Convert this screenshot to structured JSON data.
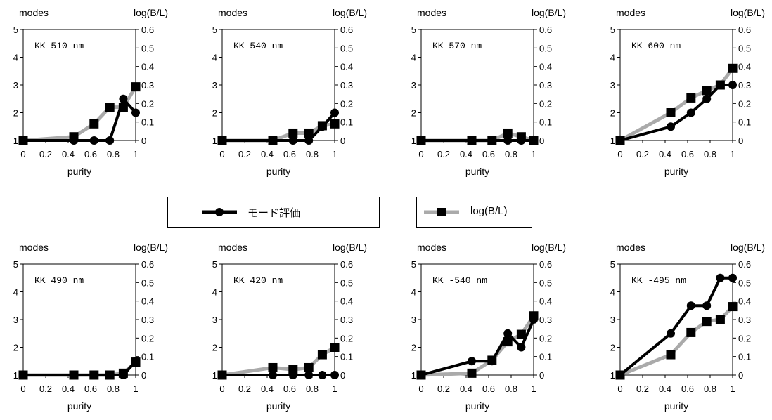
{
  "legend": {
    "mode": {
      "label": "モード評価",
      "color": "#000000",
      "marker": "circle"
    },
    "log": {
      "label": "log(B/L)",
      "color": "#aaaaaa",
      "marker": "square"
    }
  },
  "chart_data": [
    {
      "type": "line",
      "label": "KK 510 nm",
      "xlabel": "purity",
      "ylabel": "modes",
      "y2label": "log(B/L)",
      "xlim": [
        0,
        1
      ],
      "ylim": [
        1,
        5
      ],
      "y2lim": [
        0,
        0.6
      ],
      "xticks": [
        "0",
        "0.2",
        "0.4",
        "0.6",
        "0.8",
        "1"
      ],
      "yticks": [
        "1",
        "2",
        "3",
        "4",
        "5"
      ],
      "y2ticks": [
        "0",
        "0.1",
        "0.2",
        "0.3",
        "0.4",
        "0.5",
        "0.6"
      ],
      "series": [
        {
          "name": "モード評価",
          "axis": "left",
          "x": [
            0,
            0.45,
            0.63,
            0.77,
            0.89,
            1.0
          ],
          "y": [
            1,
            1,
            1,
            1,
            2.5,
            2.0
          ]
        },
        {
          "name": "log(B/L)",
          "axis": "right",
          "x": [
            0,
            0.45,
            0.63,
            0.77,
            0.89,
            1.0
          ],
          "y": [
            0,
            0.02,
            0.09,
            0.18,
            0.18,
            0.29
          ]
        }
      ]
    },
    {
      "type": "line",
      "label": "KK 540 nm",
      "xlabel": "purity",
      "ylabel": "modes",
      "y2label": "log(B/L)",
      "xlim": [
        0,
        1
      ],
      "ylim": [
        1,
        5
      ],
      "y2lim": [
        0,
        0.6
      ],
      "xticks": [
        "0",
        "0.2",
        "0.4",
        "0.6",
        "0.8",
        "1"
      ],
      "yticks": [
        "1",
        "2",
        "3",
        "4",
        "5"
      ],
      "y2ticks": [
        "0",
        "0.1",
        "0.2",
        "0.3",
        "0.4",
        "0.5",
        "0.6"
      ],
      "series": [
        {
          "name": "モード評価",
          "axis": "left",
          "x": [
            0,
            0.45,
            0.63,
            0.77,
            0.89,
            1.0
          ],
          "y": [
            1,
            1,
            1,
            1,
            1.5,
            2.0
          ]
        },
        {
          "name": "log(B/L)",
          "axis": "right",
          "x": [
            0,
            0.45,
            0.63,
            0.77,
            0.89,
            1.0
          ],
          "y": [
            0,
            0,
            0.04,
            0.04,
            0.08,
            0.09
          ]
        }
      ]
    },
    {
      "type": "line",
      "label": "KK 570 nm",
      "xlabel": "purity",
      "ylabel": "modes",
      "y2label": "log(B/L)",
      "xlim": [
        0,
        1
      ],
      "ylim": [
        1,
        5
      ],
      "y2lim": [
        0,
        0.6
      ],
      "xticks": [
        "0",
        "0.2",
        "0.4",
        "0.6",
        "0.8",
        "1"
      ],
      "yticks": [
        "1",
        "2",
        "3",
        "4",
        "5"
      ],
      "y2ticks": [
        "0",
        "0.1",
        "0.2",
        "0.3",
        "0.4",
        "0.5",
        "0.6"
      ],
      "series": [
        {
          "name": "モード評価",
          "axis": "left",
          "x": [
            0,
            0.45,
            0.63,
            0.77,
            0.89,
            1.0
          ],
          "y": [
            1,
            1,
            1,
            1,
            1,
            1
          ]
        },
        {
          "name": "log(B/L)",
          "axis": "right",
          "x": [
            0,
            0.45,
            0.63,
            0.77,
            0.89,
            1.0
          ],
          "y": [
            0,
            0,
            0,
            0.04,
            0.02,
            0
          ]
        }
      ]
    },
    {
      "type": "line",
      "label": "KK 600 nm",
      "xlabel": "purity",
      "ylabel": "modes",
      "y2label": "log(B/L)",
      "xlim": [
        0,
        1
      ],
      "ylim": [
        1,
        5
      ],
      "y2lim": [
        0,
        0.6
      ],
      "xticks": [
        "0",
        "0.2",
        "0.4",
        "0.6",
        "0.8",
        "1"
      ],
      "yticks": [
        "1",
        "2",
        "3",
        "4",
        "5"
      ],
      "y2ticks": [
        "0",
        "0.1",
        "0.2",
        "0.3",
        "0.4",
        "0.5",
        "0.6"
      ],
      "series": [
        {
          "name": "モード評価",
          "axis": "left",
          "x": [
            0,
            0.45,
            0.63,
            0.77,
            0.89,
            1.0
          ],
          "y": [
            1,
            1.5,
            2.0,
            2.5,
            3.0,
            3.0
          ]
        },
        {
          "name": "log(B/L)",
          "axis": "right",
          "x": [
            0,
            0.45,
            0.63,
            0.77,
            0.89,
            1.0
          ],
          "y": [
            0,
            0.15,
            0.23,
            0.27,
            0.3,
            0.39
          ]
        }
      ]
    },
    {
      "type": "line",
      "label": "KK 490 nm",
      "xlabel": "purity",
      "ylabel": "modes",
      "y2label": "log(B/L)",
      "xlim": [
        0,
        1
      ],
      "ylim": [
        1,
        5
      ],
      "y2lim": [
        0,
        0.6
      ],
      "xticks": [
        "0",
        "0.2",
        "0.4",
        "0.6",
        "0.8",
        "1"
      ],
      "yticks": [
        "1",
        "2",
        "3",
        "4",
        "5"
      ],
      "y2ticks": [
        "0",
        "0.1",
        "0.2",
        "0.3",
        "0.4",
        "0.5",
        "0.6"
      ],
      "series": [
        {
          "name": "モード評価",
          "axis": "left",
          "x": [
            0,
            0.45,
            0.63,
            0.77,
            0.89,
            1.0
          ],
          "y": [
            1,
            1,
            1,
            1,
            1,
            1.5
          ]
        },
        {
          "name": "log(B/L)",
          "axis": "right",
          "x": [
            0,
            0.45,
            0.63,
            0.77,
            0.89,
            1.0
          ],
          "y": [
            0,
            0,
            0,
            0,
            0.01,
            0.07
          ]
        }
      ]
    },
    {
      "type": "line",
      "label": "KK 420 nm",
      "xlabel": "purity",
      "ylabel": "modes",
      "y2label": "log(B/L)",
      "xlim": [
        0,
        1
      ],
      "ylim": [
        1,
        5
      ],
      "y2lim": [
        0,
        0.6
      ],
      "xticks": [
        "0",
        "0.2",
        "0.4",
        "0.6",
        "0.8",
        "1"
      ],
      "yticks": [
        "1",
        "2",
        "3",
        "4",
        "5"
      ],
      "y2ticks": [
        "0",
        "0.1",
        "0.2",
        "0.3",
        "0.4",
        "0.5",
        "0.6"
      ],
      "series": [
        {
          "name": "モード評価",
          "axis": "left",
          "x": [
            0,
            0.45,
            0.63,
            0.77,
            0.89,
            1.0
          ],
          "y": [
            1,
            1,
            1,
            1,
            1,
            1
          ]
        },
        {
          "name": "log(B/L)",
          "axis": "right",
          "x": [
            0,
            0.45,
            0.63,
            0.77,
            0.89,
            1.0
          ],
          "y": [
            0,
            0.04,
            0.03,
            0.04,
            0.11,
            0.15
          ]
        }
      ]
    },
    {
      "type": "line",
      "label": "KK -540 nm",
      "xlabel": "purity",
      "ylabel": "modes",
      "y2label": "log(B/L)",
      "xlim": [
        0,
        1
      ],
      "ylim": [
        1,
        5
      ],
      "y2lim": [
        0,
        0.6
      ],
      "xticks": [
        "0",
        "0.2",
        "0.4",
        "0.6",
        "0.8",
        "1"
      ],
      "yticks": [
        "1",
        "2",
        "3",
        "4",
        "5"
      ],
      "y2ticks": [
        "0",
        "0.1",
        "0.2",
        "0.3",
        "0.4",
        "0.5",
        "0.6"
      ],
      "series": [
        {
          "name": "モード評価",
          "axis": "left",
          "x": [
            0,
            0.45,
            0.63,
            0.77,
            0.89,
            1.0
          ],
          "y": [
            1,
            1.5,
            1.5,
            2.5,
            2.0,
            3.0
          ]
        },
        {
          "name": "log(B/L)",
          "axis": "right",
          "x": [
            0,
            0.45,
            0.63,
            0.77,
            0.89,
            1.0
          ],
          "y": [
            0,
            0.01,
            0.08,
            0.18,
            0.22,
            0.32
          ]
        }
      ]
    },
    {
      "type": "line",
      "label": "KK -495 nm",
      "xlabel": "purity",
      "ylabel": "modes",
      "y2label": "log(B/L)",
      "xlim": [
        0,
        1
      ],
      "ylim": [
        1,
        5
      ],
      "y2lim": [
        0,
        0.6
      ],
      "xticks": [
        "0",
        "0.2",
        "0.4",
        "0.6",
        "0.8",
        "1"
      ],
      "yticks": [
        "1",
        "2",
        "3",
        "4",
        "5"
      ],
      "y2ticks": [
        "0",
        "0.1",
        "0.2",
        "0.3",
        "0.4",
        "0.5",
        "0.6"
      ],
      "series": [
        {
          "name": "モード評価",
          "axis": "left",
          "x": [
            0,
            0.45,
            0.63,
            0.77,
            0.89,
            1.0
          ],
          "y": [
            1,
            2.5,
            3.5,
            3.5,
            4.5,
            4.5
          ]
        },
        {
          "name": "log(B/L)",
          "axis": "right",
          "x": [
            0,
            0.45,
            0.63,
            0.77,
            0.89,
            1.0
          ],
          "y": [
            0,
            0.11,
            0.23,
            0.29,
            0.3,
            0.37
          ]
        }
      ]
    }
  ]
}
